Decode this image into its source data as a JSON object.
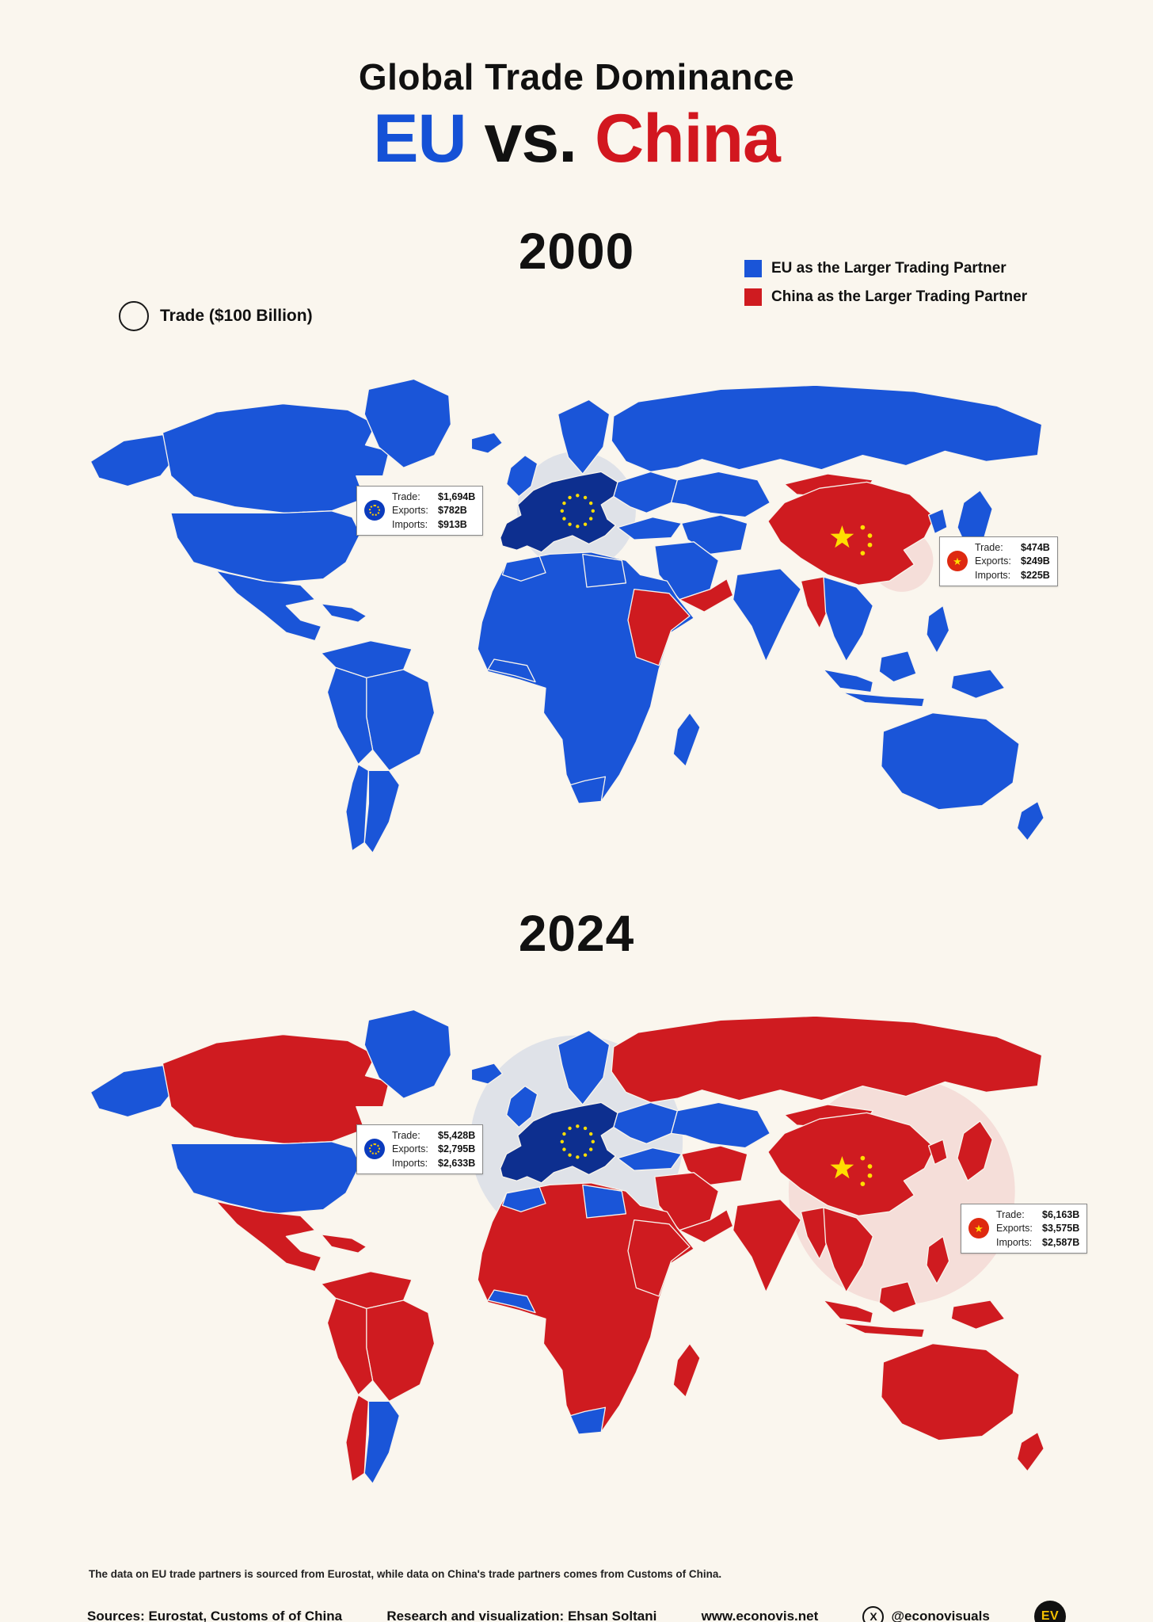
{
  "header": {
    "title": "Global Trade Dominance",
    "eu": "EU",
    "vs": "vs.",
    "china": "China"
  },
  "legend": {
    "trade_circle_label": "Trade ($100 Billion)",
    "eu_label": "EU as the Larger Trading Partner",
    "china_label": "China as the Larger Trading Partner"
  },
  "colors": {
    "eu_partner": "#1a55d8",
    "china_partner": "#cf1b20",
    "eu_member": "#0d2f8f",
    "circle_eu": "#c9d2e3",
    "circle_china": "#f2cfcb",
    "star_yellow": "#ffde00",
    "background": "#faf6ee",
    "title_eu": "#1551d6",
    "title_china": "#d2171f"
  },
  "maps": [
    {
      "year": "2000",
      "eu": {
        "trade_billion": 1694,
        "rows": [
          {
            "label": "Trade:",
            "value": "$1,694B"
          },
          {
            "label": "Exports:",
            "value": "$782B"
          },
          {
            "label": "Imports:",
            "value": "$913B"
          }
        ]
      },
      "china": {
        "trade_billion": 474,
        "rows": [
          {
            "label": "Trade:",
            "value": "$474B"
          },
          {
            "label": "Exports:",
            "value": "$249B"
          },
          {
            "label": "Imports:",
            "value": "$225B"
          }
        ]
      },
      "china_partner_regions": [
        "china",
        "mongolia",
        "myanmar",
        "sudan_ethiopia",
        "oman_yemen"
      ]
    },
    {
      "year": "2024",
      "eu": {
        "trade_billion": 5428,
        "rows": [
          {
            "label": "Trade:",
            "value": "$5,428B"
          },
          {
            "label": "Exports:",
            "value": "$2,795B"
          },
          {
            "label": "Imports:",
            "value": "$2,633B"
          }
        ]
      },
      "china": {
        "trade_billion": 6163,
        "rows": [
          {
            "label": "Trade:",
            "value": "$6,163B"
          },
          {
            "label": "Exports:",
            "value": "$3,575B"
          },
          {
            "label": "Imports:",
            "value": "$2,587B"
          }
        ]
      },
      "china_partner_regions": [
        "canada",
        "mexico",
        "caribbean",
        "northern_sa",
        "brazil",
        "andes",
        "chile",
        "russia",
        "iran",
        "arabia",
        "oman_yemen",
        "africa",
        "sudan_ethiopia",
        "madagascar",
        "india",
        "china",
        "mongolia",
        "myanmar",
        "indochina",
        "korea",
        "japan",
        "philippines",
        "indonesia",
        "borneo",
        "new_guinea",
        "australia",
        "new_zealand"
      ]
    }
  ],
  "footnote": {
    "text": "The data on EU trade partners is sourced from Eurostat, while data on China's trade partners comes from Customs of China."
  },
  "footer": {
    "sources": "Sources: Eurostat, Customs of of China",
    "research": "Research and visualization: Ehsan Soltani",
    "website": "www.econovis.net",
    "handle": "@econovisuals",
    "x_glyph": "X",
    "logo_text": "EV"
  }
}
